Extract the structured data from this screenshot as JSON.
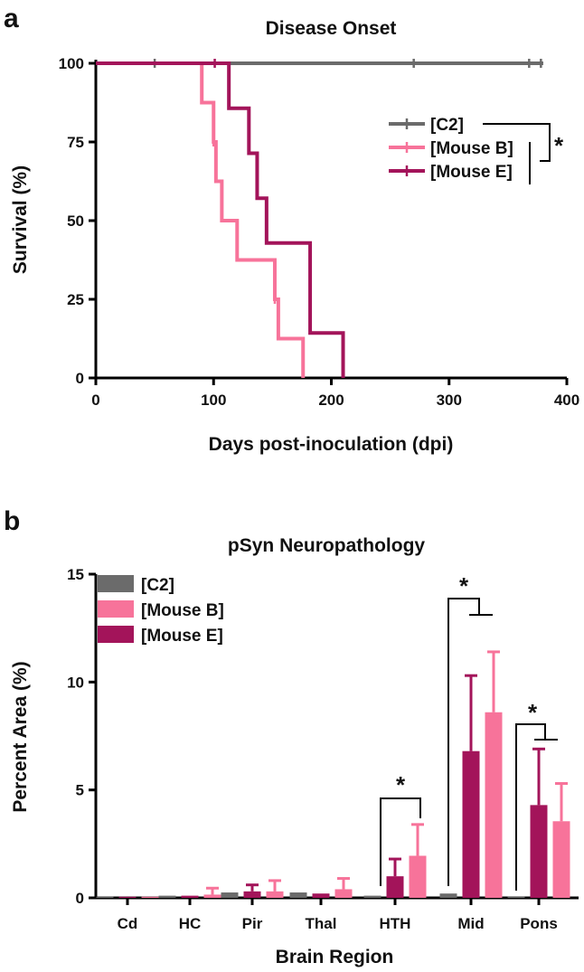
{
  "panels": {
    "a": "a",
    "b": "b"
  },
  "colors": {
    "c2": "#6b6b6b",
    "mouse_b": "#f7739a",
    "mouse_e": "#a3145a"
  },
  "significance": "*",
  "chart_data": [
    {
      "type": "line",
      "subtype": "kaplan-meier",
      "title": "Disease Onset",
      "xlabel": "Days post-inoculation (dpi)",
      "ylabel": "Survival (%)",
      "xlim": [
        0,
        400
      ],
      "ylim": [
        0,
        100
      ],
      "xticks": [
        0,
        100,
        200,
        300,
        400
      ],
      "yticks": [
        0,
        25,
        50,
        75,
        100
      ],
      "legend_position": "right",
      "series": [
        {
          "name": "[C2]",
          "color_key": "c2",
          "steps": [
            [
              0,
              100
            ],
            [
              380,
              100
            ]
          ],
          "censored": [
            50,
            270,
            368,
            378
          ]
        },
        {
          "name": "[Mouse B]",
          "color_key": "mouse_b",
          "steps": [
            [
              0,
              100
            ],
            [
              90,
              87.5
            ],
            [
              100,
              75
            ],
            [
              102,
              62.5
            ],
            [
              107,
              50
            ],
            [
              120,
              37.5
            ],
            [
              152,
              25
            ],
            [
              155,
              12.5
            ],
            [
              176,
              0
            ]
          ],
          "censored": [
            100,
            152
          ]
        },
        {
          "name": "[Mouse E]",
          "color_key": "mouse_e",
          "steps": [
            [
              0,
              100
            ],
            [
              113,
              85.7
            ],
            [
              130,
              71.4
            ],
            [
              137,
              57.1
            ],
            [
              145,
              42.9
            ],
            [
              182,
              14.3
            ],
            [
              210,
              0
            ]
          ],
          "censored": [
            101
          ]
        }
      ],
      "annotations": [
        {
          "text": "*",
          "comparison": "[C2] vs [Mouse B], [Mouse E]"
        }
      ]
    },
    {
      "type": "bar",
      "title": "pSyn Neuropathology",
      "xlabel": "Brain Region",
      "ylabel": "Percent Area (%)",
      "ylim": [
        0,
        15
      ],
      "yticks": [
        0,
        5,
        10,
        15
      ],
      "legend_position": "top-left",
      "categories": [
        "Cd",
        "HC",
        "Pir",
        "Thal",
        "HTH",
        "Mid",
        "Pons"
      ],
      "series": [
        {
          "name": "[C2]",
          "color_key": "c2",
          "values": [
            0.05,
            0.1,
            0.25,
            0.25,
            0.1,
            0.2,
            0.05
          ],
          "errors": [
            0,
            0,
            0,
            0,
            0,
            0,
            0
          ]
        },
        {
          "name": "[Mouse E]",
          "color_key": "mouse_e",
          "values": [
            0.05,
            0.1,
            0.3,
            0.2,
            1.0,
            6.8,
            4.3
          ],
          "errors": [
            0,
            0,
            0.3,
            0,
            0.8,
            3.5,
            2.6
          ]
        },
        {
          "name": "[Mouse B]",
          "color_key": "mouse_b",
          "values": [
            0.05,
            0.15,
            0.3,
            0.4,
            1.95,
            8.6,
            3.55
          ],
          "errors": [
            0,
            0.3,
            0.5,
            0.5,
            1.45,
            2.8,
            1.75
          ]
        }
      ],
      "legend_order": [
        "[C2]",
        "[Mouse B]",
        "[Mouse E]"
      ],
      "annotations": [
        {
          "text": "*",
          "category": "HTH"
        },
        {
          "text": "*",
          "category": "Mid"
        },
        {
          "text": "*",
          "category": "Pons"
        }
      ]
    }
  ]
}
